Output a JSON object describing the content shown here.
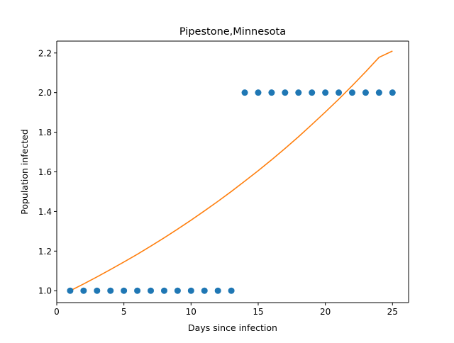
{
  "chart_data": {
    "type": "scatter",
    "title": "Pipestone,Minnesota",
    "xlabel": "Days since infection",
    "ylabel": "Population infected",
    "xlim": [
      0,
      26.2
    ],
    "ylim": [
      0.94,
      2.26
    ],
    "x_ticks": [
      0,
      5,
      10,
      15,
      20,
      25
    ],
    "x_tick_labels": [
      "0",
      "5",
      "10",
      "15",
      "20",
      "25"
    ],
    "y_ticks": [
      1.0,
      1.2,
      1.4,
      1.6,
      1.8,
      2.0,
      2.2
    ],
    "y_tick_labels": [
      "1.0",
      "1.2",
      "1.4",
      "1.6",
      "1.8",
      "2.0",
      "2.2"
    ],
    "grid": false,
    "series": [
      {
        "kind": "scatter",
        "color": "#1f77b4",
        "x": [
          1,
          2,
          3,
          4,
          5,
          6,
          7,
          8,
          9,
          10,
          11,
          12,
          13,
          14,
          15,
          16,
          17,
          18,
          19,
          20,
          21,
          22,
          23,
          24,
          25
        ],
        "y": [
          1,
          1,
          1,
          1,
          1,
          1,
          1,
          1,
          1,
          1,
          1,
          1,
          1,
          2,
          2,
          2,
          2,
          2,
          2,
          2,
          2,
          2,
          2,
          2,
          2
        ]
      },
      {
        "kind": "line",
        "color": "#ff7f0e",
        "x": [
          1,
          2,
          3,
          4,
          5,
          6,
          7,
          8,
          9,
          10,
          11,
          12,
          13,
          14,
          15,
          16,
          17,
          18,
          19,
          20,
          21,
          22,
          23,
          24,
          25
        ],
        "y": [
          1.0,
          1.034,
          1.07,
          1.107,
          1.145,
          1.184,
          1.225,
          1.267,
          1.311,
          1.356,
          1.403,
          1.451,
          1.501,
          1.553,
          1.606,
          1.661,
          1.718,
          1.777,
          1.839,
          1.902,
          1.967,
          2.035,
          2.105,
          2.178,
          2.21
        ]
      }
    ]
  }
}
